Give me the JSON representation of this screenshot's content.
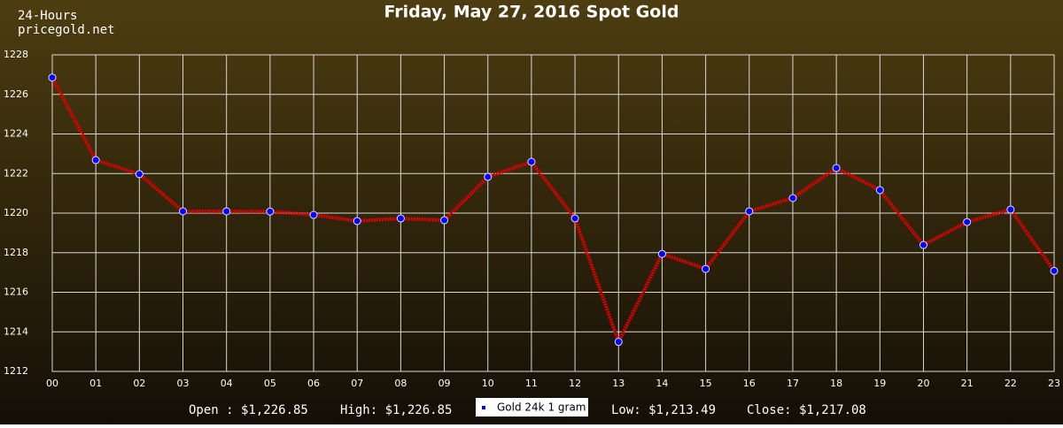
{
  "chart_data": {
    "type": "line",
    "title": "Friday, May 27, 2016 Spot Gold",
    "subtitle_lines": [
      "24-Hours",
      "pricegold.net"
    ],
    "categories": [
      "00",
      "01",
      "02",
      "03",
      "04",
      "05",
      "06",
      "07",
      "08",
      "09",
      "10",
      "11",
      "12",
      "13",
      "14",
      "15",
      "16",
      "17",
      "18",
      "19",
      "20",
      "21",
      "22",
      "23"
    ],
    "series": [
      {
        "name": "Gold 24k 1 gram",
        "color": "#e00000",
        "marker_color": "#0000ff",
        "values": [
          1226.85,
          1222.68,
          1221.97,
          1220.09,
          1220.09,
          1220.08,
          1219.91,
          1219.6,
          1219.73,
          1219.64,
          1221.83,
          1222.59,
          1219.73,
          1213.49,
          1217.94,
          1217.18,
          1220.09,
          1220.76,
          1222.28,
          1221.16,
          1218.39,
          1219.55,
          1220.18,
          1217.08
        ]
      }
    ],
    "ylim": [
      1212,
      1228
    ],
    "yticks": [
      1212,
      1214,
      1216,
      1218,
      1220,
      1222,
      1224,
      1226,
      1228
    ],
    "grid": true,
    "stats": [
      "Open : $1,226.85",
      "High: $1,226.85",
      "Low: $1,213.49",
      "Close: $1,217.08"
    ]
  }
}
